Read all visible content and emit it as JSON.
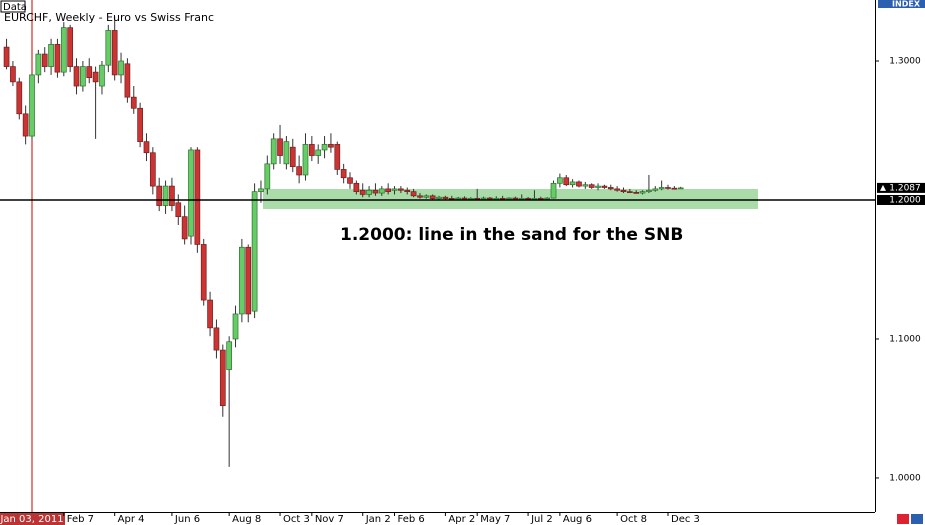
{
  "chart_data": {
    "type": "candlestick",
    "data_label": "Data",
    "title": "EURCHF, Weekly - Euro vs Swiss Franc",
    "index_label": "INDEX",
    "annotation": "1.2000: line in the sand for the SNB",
    "ylim": [
      0.9755,
      1.3439
    ],
    "yticks": [
      {
        "value": 1.3,
        "label": "1.3000"
      },
      {
        "value": 1.1,
        "label": "1.1000"
      },
      {
        "value": 1.0,
        "label": "1.0000"
      }
    ],
    "hline": {
      "value": 1.2,
      "label": "1.2000"
    },
    "current_price": 1.2087,
    "zone": [
      1.1935,
      1.2079
    ],
    "up_color": "#66cc66",
    "down_color": "#cc3333",
    "zone_color": "#a9dca9",
    "categories": [
      null,
      null,
      null,
      null,
      "Jan 03, 2011",
      null,
      null,
      null,
      null,
      "Feb 7",
      null,
      null,
      null,
      null,
      null,
      null,
      null,
      "Apr 4",
      null,
      null,
      null,
      null,
      null,
      null,
      null,
      null,
      "Jun 6",
      null,
      null,
      null,
      null,
      null,
      null,
      null,
      null,
      "Aug 8",
      null,
      null,
      null,
      null,
      null,
      null,
      null,
      "Oct 3",
      null,
      null,
      null,
      null,
      "Nov 7",
      null,
      null,
      null,
      null,
      null,
      null,
      null,
      "Jan 2",
      null,
      null,
      null,
      null,
      "Feb 6",
      null,
      null,
      null,
      null,
      null,
      null,
      null,
      "Apr 2",
      null,
      null,
      null,
      null,
      "May 7",
      null,
      null,
      null,
      null,
      null,
      null,
      null,
      "Jul 2",
      null,
      null,
      null,
      null,
      "Aug 6",
      null,
      null,
      null,
      null,
      null,
      null,
      null,
      null,
      "Oct 8",
      null,
      null,
      null,
      null,
      null,
      null,
      null,
      "Dec 3",
      null,
      null
    ],
    "candles": [
      [
        1.31,
        1.316,
        1.294,
        1.296
      ],
      [
        1.296,
        1.3,
        1.282,
        1.285
      ],
      [
        1.285,
        1.288,
        1.258,
        1.262
      ],
      [
        1.262,
        1.268,
        1.24,
        1.246
      ],
      [
        1.246,
        1.292,
        1.243,
        1.29
      ],
      [
        1.29,
        1.308,
        1.284,
        1.305
      ],
      [
        1.305,
        1.31,
        1.292,
        1.296
      ],
      [
        1.296,
        1.316,
        1.29,
        1.312
      ],
      [
        1.312,
        1.316,
        1.288,
        1.292
      ],
      [
        1.292,
        1.328,
        1.289,
        1.324
      ],
      [
        1.324,
        1.326,
        1.292,
        1.296
      ],
      [
        1.296,
        1.302,
        1.276,
        1.282
      ],
      [
        1.282,
        1.3,
        1.278,
        1.296
      ],
      [
        1.296,
        1.302,
        1.284,
        1.288
      ],
      [
        1.292,
        1.296,
        1.244,
        1.285
      ],
      [
        1.282,
        1.3,
        1.276,
        1.297
      ],
      [
        1.297,
        1.326,
        1.292,
        1.322
      ],
      [
        1.322,
        1.332,
        1.286,
        1.29
      ],
      [
        1.29,
        1.306,
        1.284,
        1.3
      ],
      [
        1.298,
        1.302,
        1.27,
        1.274
      ],
      [
        1.274,
        1.282,
        1.262,
        1.266
      ],
      [
        1.266,
        1.27,
        1.238,
        1.242
      ],
      [
        1.242,
        1.248,
        1.228,
        1.234
      ],
      [
        1.234,
        1.238,
        1.204,
        1.21
      ],
      [
        1.21,
        1.216,
        1.192,
        1.196
      ],
      [
        1.196,
        1.214,
        1.19,
        1.21
      ],
      [
        1.21,
        1.216,
        1.192,
        1.196
      ],
      [
        1.198,
        1.204,
        1.182,
        1.188
      ],
      [
        1.188,
        1.196,
        1.168,
        1.172
      ],
      [
        1.174,
        1.238,
        1.168,
        1.236
      ],
      [
        1.236,
        1.238,
        1.162,
        1.168
      ],
      [
        1.168,
        1.172,
        1.124,
        1.128
      ],
      [
        1.128,
        1.134,
        1.102,
        1.108
      ],
      [
        1.108,
        1.114,
        1.086,
        1.092
      ],
      [
        1.092,
        1.096,
        1.044,
        1.052
      ],
      [
        1.078,
        1.102,
        1.008,
        1.098
      ],
      [
        1.1,
        1.124,
        1.094,
        1.118
      ],
      [
        1.118,
        1.172,
        1.112,
        1.166
      ],
      [
        1.166,
        1.168,
        1.112,
        1.118
      ],
      [
        1.12,
        1.212,
        1.115,
        1.206
      ],
      [
        1.206,
        1.214,
        1.198,
        1.208
      ],
      [
        1.208,
        1.232,
        1.204,
        1.226
      ],
      [
        1.226,
        1.248,
        1.222,
        1.244
      ],
      [
        1.244,
        1.254,
        1.226,
        1.232
      ],
      [
        1.226,
        1.246,
        1.222,
        1.242
      ],
      [
        1.238,
        1.244,
        1.22,
        1.224
      ],
      [
        1.224,
        1.232,
        1.212,
        1.218
      ],
      [
        1.218,
        1.248,
        1.214,
        1.24
      ],
      [
        1.24,
        1.246,
        1.228,
        1.232
      ],
      [
        1.232,
        1.24,
        1.226,
        1.236
      ],
      [
        1.236,
        1.246,
        1.23,
        1.24
      ],
      [
        1.24,
        1.248,
        1.234,
        1.238
      ],
      [
        1.24,
        1.242,
        1.218,
        1.222
      ],
      [
        1.222,
        1.226,
        1.212,
        1.216
      ],
      [
        1.216,
        1.22,
        1.208,
        1.212
      ],
      [
        1.212,
        1.214,
        1.204,
        1.206
      ],
      [
        1.207,
        1.212,
        1.202,
        1.204
      ],
      [
        1.204,
        1.21,
        1.202,
        1.207
      ],
      [
        1.207,
        1.212,
        1.203,
        1.205
      ],
      [
        1.205,
        1.21,
        1.203,
        1.208
      ],
      [
        1.208,
        1.212,
        1.204,
        1.206
      ],
      [
        1.207,
        1.21,
        1.204,
        1.208
      ],
      [
        1.208,
        1.21,
        1.205,
        1.207
      ],
      [
        1.207,
        1.209,
        1.204,
        1.206
      ],
      [
        1.206,
        1.208,
        1.202,
        1.203
      ],
      [
        1.203,
        1.205,
        1.201,
        1.202
      ],
      [
        1.202,
        1.204,
        1.201,
        1.203
      ],
      [
        1.203,
        1.204,
        1.2,
        1.201
      ],
      [
        1.201,
        1.203,
        1.2,
        1.202
      ],
      [
        1.202,
        1.203,
        1.2,
        1.201
      ],
      [
        1.2012,
        1.203,
        1.2002,
        1.201
      ],
      [
        1.201,
        1.2022,
        1.2004,
        1.2014
      ],
      [
        1.2014,
        1.2026,
        1.2006,
        1.201
      ],
      [
        1.201,
        1.202,
        1.2004,
        1.2012
      ],
      [
        1.2012,
        1.208,
        1.2004,
        1.201
      ],
      [
        1.201,
        1.2024,
        1.2006,
        1.2014
      ],
      [
        1.2014,
        1.2022,
        1.2006,
        1.201
      ],
      [
        1.201,
        1.2026,
        1.2004,
        1.2012
      ],
      [
        1.2012,
        1.203,
        1.2006,
        1.201
      ],
      [
        1.201,
        1.202,
        1.2004,
        1.2014
      ],
      [
        1.2014,
        1.2024,
        1.2006,
        1.201
      ],
      [
        1.201,
        1.204,
        1.2004,
        1.2012
      ],
      [
        1.2012,
        1.2022,
        1.2006,
        1.201
      ],
      [
        1.201,
        1.207,
        1.2006,
        1.2012
      ],
      [
        1.2012,
        1.2024,
        1.2006,
        1.201
      ],
      [
        1.201,
        1.202,
        1.2004,
        1.2014
      ],
      [
        1.2014,
        1.214,
        1.201,
        1.212
      ],
      [
        1.212,
        1.219,
        1.209,
        1.216
      ],
      [
        1.216,
        1.218,
        1.21,
        1.211
      ],
      [
        1.211,
        1.215,
        1.209,
        1.213
      ],
      [
        1.213,
        1.214,
        1.209,
        1.21
      ],
      [
        1.21,
        1.213,
        1.208,
        1.211
      ],
      [
        1.211,
        1.212,
        1.208,
        1.209
      ],
      [
        1.209,
        1.212,
        1.207,
        1.21
      ],
      [
        1.21,
        1.211,
        1.208,
        1.209
      ],
      [
        1.209,
        1.211,
        1.207,
        1.208
      ],
      [
        1.208,
        1.21,
        1.206,
        1.207
      ],
      [
        1.207,
        1.209,
        1.205,
        1.206
      ],
      [
        1.206,
        1.208,
        1.205,
        1.2055
      ],
      [
        1.2055,
        1.207,
        1.2045,
        1.205
      ],
      [
        1.205,
        1.207,
        1.204,
        1.206
      ],
      [
        1.206,
        1.218,
        1.205,
        1.207
      ],
      [
        1.207,
        1.21,
        1.206,
        1.208
      ],
      [
        1.208,
        1.214,
        1.207,
        1.209
      ],
      [
        1.209,
        1.211,
        1.2075,
        1.2085
      ],
      [
        1.2085,
        1.21,
        1.208,
        1.2084
      ],
      [
        1.2084,
        1.2095,
        1.208,
        1.2087
      ]
    ]
  }
}
